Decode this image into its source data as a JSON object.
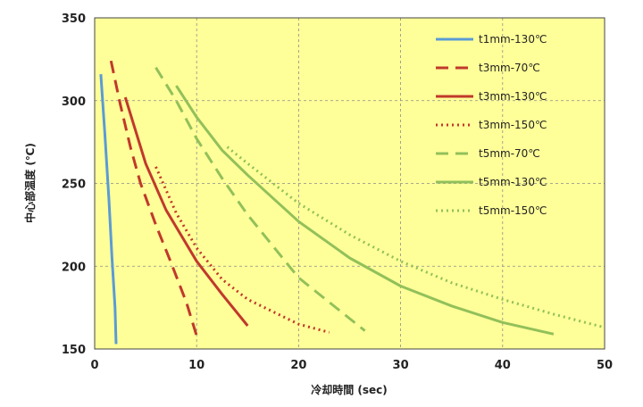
{
  "chart_data": {
    "type": "line",
    "title": "",
    "xlabel": "冷却時間 (sec)",
    "ylabel": "中心部温度 (℃)",
    "xlim": [
      0,
      50
    ],
    "ylim": [
      150,
      350
    ],
    "x_ticks": [
      0,
      10,
      20,
      30,
      40,
      50
    ],
    "y_ticks": [
      150,
      200,
      250,
      300,
      350
    ],
    "grid": "dashed",
    "legend_position": "top-right",
    "plot_background": "#ffff99",
    "series": [
      {
        "name": "t1mm-130℃",
        "color": "#5b9bd5",
        "dash": "solid",
        "points": [
          [
            0.6,
            316
          ],
          [
            1.0,
            280
          ],
          [
            1.4,
            240
          ],
          [
            1.7,
            205
          ],
          [
            2.0,
            175
          ],
          [
            2.1,
            153
          ]
        ]
      },
      {
        "name": "t3mm-70℃",
        "color": "#c0392b",
        "dash": "dashed",
        "points": [
          [
            1.6,
            324
          ],
          [
            2.5,
            298
          ],
          [
            3.5,
            272
          ],
          [
            4.5,
            250
          ],
          [
            6,
            225
          ],
          [
            7.5,
            202
          ],
          [
            9,
            178
          ],
          [
            10,
            158
          ]
        ]
      },
      {
        "name": "t3mm-130℃",
        "color": "#c0392b",
        "dash": "solid",
        "points": [
          [
            3.0,
            302
          ],
          [
            4.0,
            282
          ],
          [
            5.0,
            262
          ],
          [
            7.0,
            234
          ],
          [
            10.0,
            203
          ],
          [
            12.5,
            183
          ],
          [
            15.0,
            164
          ]
        ]
      },
      {
        "name": "t3mm-150℃",
        "color": "#c0392b",
        "dash": "dotted",
        "points": [
          [
            6.0,
            260
          ],
          [
            8.0,
            232
          ],
          [
            10.0,
            211
          ],
          [
            12.5,
            192
          ],
          [
            15.0,
            180
          ],
          [
            20.0,
            165
          ],
          [
            23.0,
            160
          ]
        ]
      },
      {
        "name": "t5mm-70℃",
        "color": "#92c05a",
        "dash": "dashed",
        "points": [
          [
            6.0,
            320
          ],
          [
            8.0,
            300
          ],
          [
            10.0,
            277
          ],
          [
            12.5,
            253
          ],
          [
            15.0,
            231
          ],
          [
            20.0,
            193
          ],
          [
            26.5,
            161
          ]
        ]
      },
      {
        "name": "t5mm-130℃",
        "color": "#92c05a",
        "dash": "solid",
        "points": [
          [
            8.0,
            309
          ],
          [
            10.0,
            290
          ],
          [
            12.5,
            270
          ],
          [
            15.0,
            255
          ],
          [
            20.0,
            227
          ],
          [
            25.0,
            205
          ],
          [
            30.0,
            188
          ],
          [
            35.0,
            176
          ],
          [
            40.0,
            166
          ],
          [
            45.0,
            159
          ]
        ]
      },
      {
        "name": "t5mm-150℃",
        "color": "#92c05a",
        "dash": "dotted",
        "points": [
          [
            13.0,
            272
          ],
          [
            15.0,
            262
          ],
          [
            20.0,
            238
          ],
          [
            25.0,
            219
          ],
          [
            30.0,
            203
          ],
          [
            35.0,
            190
          ],
          [
            40.0,
            180
          ],
          [
            45.0,
            171
          ],
          [
            50.0,
            163
          ]
        ]
      }
    ]
  }
}
